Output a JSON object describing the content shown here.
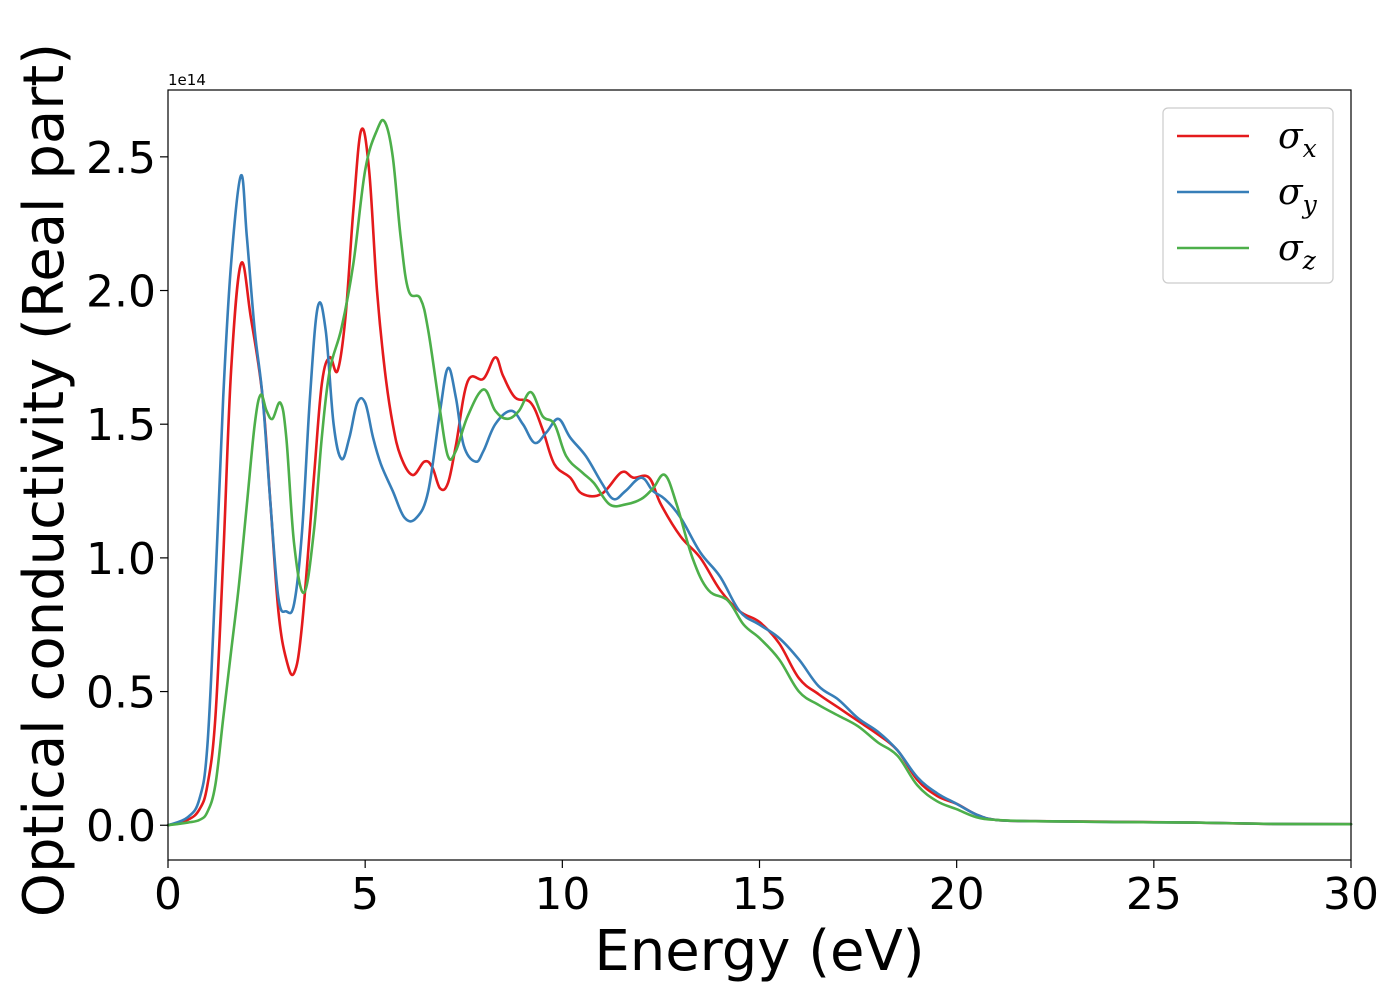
{
  "chart_data": {
    "type": "line",
    "title": "",
    "xlabel": "Energy (eV)",
    "ylabel": "Optical conductivity (Real part)",
    "y_offset_label": "1e14",
    "y_scale": 100000000000000.0,
    "xlim": [
      0,
      30
    ],
    "ylim": [
      -0.13,
      2.75
    ],
    "xticks": [
      0,
      5,
      10,
      15,
      20,
      25,
      30
    ],
    "xtick_labels": [
      "0",
      "5",
      "10",
      "15",
      "20",
      "25",
      "30"
    ],
    "yticks": [
      0.0,
      0.5,
      1.0,
      1.5,
      2.0,
      2.5
    ],
    "ytick_labels": [
      "0.0",
      "0.5",
      "1.0",
      "1.5",
      "2.0",
      "2.5"
    ],
    "grid": false,
    "legend_position": "top-right",
    "series": [
      {
        "name": "σx",
        "name_base": "σ",
        "name_sub": "x",
        "color": "#e41a1c",
        "points": [
          [
            0,
            0
          ],
          [
            0.5,
            0.02
          ],
          [
            0.8,
            0.06
          ],
          [
            1.0,
            0.15
          ],
          [
            1.2,
            0.4
          ],
          [
            1.4,
            1.0
          ],
          [
            1.6,
            1.7
          ],
          [
            1.85,
            2.1
          ],
          [
            2.1,
            1.9
          ],
          [
            2.4,
            1.6
          ],
          [
            2.6,
            1.2
          ],
          [
            2.8,
            0.8
          ],
          [
            3.0,
            0.62
          ],
          [
            3.2,
            0.57
          ],
          [
            3.4,
            0.75
          ],
          [
            3.7,
            1.3
          ],
          [
            3.9,
            1.65
          ],
          [
            4.1,
            1.75
          ],
          [
            4.3,
            1.7
          ],
          [
            4.5,
            1.9
          ],
          [
            4.7,
            2.3
          ],
          [
            4.9,
            2.6
          ],
          [
            5.1,
            2.45
          ],
          [
            5.3,
            2.0
          ],
          [
            5.5,
            1.7
          ],
          [
            5.7,
            1.5
          ],
          [
            5.9,
            1.38
          ],
          [
            6.2,
            1.31
          ],
          [
            6.5,
            1.36
          ],
          [
            6.7,
            1.34
          ],
          [
            6.9,
            1.26
          ],
          [
            7.1,
            1.28
          ],
          [
            7.3,
            1.42
          ],
          [
            7.6,
            1.66
          ],
          [
            8.0,
            1.67
          ],
          [
            8.3,
            1.75
          ],
          [
            8.5,
            1.68
          ],
          [
            8.8,
            1.6
          ],
          [
            9.2,
            1.58
          ],
          [
            9.5,
            1.48
          ],
          [
            9.8,
            1.35
          ],
          [
            10.2,
            1.3
          ],
          [
            10.5,
            1.24
          ],
          [
            11.0,
            1.24
          ],
          [
            11.5,
            1.32
          ],
          [
            11.8,
            1.3
          ],
          [
            12.2,
            1.3
          ],
          [
            12.5,
            1.2
          ],
          [
            13.0,
            1.08
          ],
          [
            13.5,
            1.0
          ],
          [
            14.0,
            0.88
          ],
          [
            14.5,
            0.8
          ],
          [
            15.0,
            0.76
          ],
          [
            15.5,
            0.68
          ],
          [
            16.0,
            0.55
          ],
          [
            16.5,
            0.49
          ],
          [
            17.0,
            0.44
          ],
          [
            17.5,
            0.39
          ],
          [
            18.0,
            0.34
          ],
          [
            18.5,
            0.28
          ],
          [
            19.0,
            0.17
          ],
          [
            19.5,
            0.11
          ],
          [
            20.0,
            0.08
          ],
          [
            20.5,
            0.04
          ],
          [
            21.0,
            0.02
          ],
          [
            22.0,
            0.015
          ],
          [
            24.0,
            0.013
          ],
          [
            26.0,
            0.01
          ],
          [
            28.0,
            0.005
          ],
          [
            30.0,
            0.004
          ]
        ]
      },
      {
        "name": "σy",
        "name_base": "σ",
        "name_sub": "y",
        "color": "#377eb8",
        "points": [
          [
            0,
            0
          ],
          [
            0.5,
            0.03
          ],
          [
            0.8,
            0.1
          ],
          [
            1.0,
            0.3
          ],
          [
            1.2,
            0.9
          ],
          [
            1.4,
            1.6
          ],
          [
            1.6,
            2.1
          ],
          [
            1.85,
            2.43
          ],
          [
            2.0,
            2.2
          ],
          [
            2.2,
            1.85
          ],
          [
            2.4,
            1.6
          ],
          [
            2.6,
            1.2
          ],
          [
            2.8,
            0.85
          ],
          [
            3.0,
            0.8
          ],
          [
            3.2,
            0.83
          ],
          [
            3.4,
            1.1
          ],
          [
            3.6,
            1.6
          ],
          [
            3.8,
            1.94
          ],
          [
            4.0,
            1.85
          ],
          [
            4.2,
            1.5
          ],
          [
            4.4,
            1.37
          ],
          [
            4.6,
            1.45
          ],
          [
            4.8,
            1.58
          ],
          [
            5.0,
            1.58
          ],
          [
            5.2,
            1.45
          ],
          [
            5.4,
            1.35
          ],
          [
            5.7,
            1.25
          ],
          [
            6.0,
            1.15
          ],
          [
            6.3,
            1.15
          ],
          [
            6.6,
            1.25
          ],
          [
            6.9,
            1.55
          ],
          [
            7.1,
            1.71
          ],
          [
            7.3,
            1.6
          ],
          [
            7.5,
            1.42
          ],
          [
            7.8,
            1.36
          ],
          [
            8.0,
            1.4
          ],
          [
            8.3,
            1.5
          ],
          [
            8.7,
            1.55
          ],
          [
            9.0,
            1.5
          ],
          [
            9.3,
            1.43
          ],
          [
            9.6,
            1.47
          ],
          [
            9.9,
            1.52
          ],
          [
            10.2,
            1.45
          ],
          [
            10.6,
            1.38
          ],
          [
            11.0,
            1.28
          ],
          [
            11.3,
            1.22
          ],
          [
            11.6,
            1.25
          ],
          [
            12.0,
            1.3
          ],
          [
            12.3,
            1.25
          ],
          [
            12.6,
            1.22
          ],
          [
            13.0,
            1.15
          ],
          [
            13.5,
            1.02
          ],
          [
            14.0,
            0.93
          ],
          [
            14.5,
            0.8
          ],
          [
            15.0,
            0.75
          ],
          [
            15.5,
            0.7
          ],
          [
            16.0,
            0.62
          ],
          [
            16.5,
            0.52
          ],
          [
            17.0,
            0.47
          ],
          [
            17.5,
            0.4
          ],
          [
            18.0,
            0.35
          ],
          [
            18.5,
            0.28
          ],
          [
            19.0,
            0.18
          ],
          [
            19.5,
            0.12
          ],
          [
            20.0,
            0.08
          ],
          [
            20.5,
            0.04
          ],
          [
            21.0,
            0.02
          ],
          [
            22.0,
            0.015
          ],
          [
            24.0,
            0.012
          ],
          [
            26.0,
            0.01
          ],
          [
            28.0,
            0.005
          ],
          [
            30.0,
            0.004
          ]
        ]
      },
      {
        "name": "σz",
        "name_base": "σ",
        "name_sub": "z",
        "color": "#4daf4a",
        "points": [
          [
            0,
            0
          ],
          [
            0.5,
            0.01
          ],
          [
            0.8,
            0.02
          ],
          [
            1.0,
            0.05
          ],
          [
            1.2,
            0.15
          ],
          [
            1.4,
            0.4
          ],
          [
            1.6,
            0.65
          ],
          [
            1.8,
            0.9
          ],
          [
            2.0,
            1.2
          ],
          [
            2.2,
            1.5
          ],
          [
            2.35,
            1.61
          ],
          [
            2.5,
            1.55
          ],
          [
            2.65,
            1.52
          ],
          [
            2.85,
            1.58
          ],
          [
            3.0,
            1.45
          ],
          [
            3.2,
            1.05
          ],
          [
            3.45,
            0.87
          ],
          [
            3.7,
            1.1
          ],
          [
            3.9,
            1.45
          ],
          [
            4.1,
            1.7
          ],
          [
            4.4,
            1.86
          ],
          [
            4.7,
            2.1
          ],
          [
            5.0,
            2.45
          ],
          [
            5.3,
            2.6
          ],
          [
            5.5,
            2.63
          ],
          [
            5.7,
            2.5
          ],
          [
            5.9,
            2.2
          ],
          [
            6.1,
            2.0
          ],
          [
            6.4,
            1.97
          ],
          [
            6.6,
            1.85
          ],
          [
            6.9,
            1.55
          ],
          [
            7.1,
            1.38
          ],
          [
            7.3,
            1.4
          ],
          [
            7.6,
            1.53
          ],
          [
            8.0,
            1.63
          ],
          [
            8.3,
            1.55
          ],
          [
            8.6,
            1.52
          ],
          [
            8.9,
            1.55
          ],
          [
            9.2,
            1.62
          ],
          [
            9.5,
            1.53
          ],
          [
            9.8,
            1.5
          ],
          [
            10.1,
            1.38
          ],
          [
            10.5,
            1.32
          ],
          [
            10.8,
            1.28
          ],
          [
            11.2,
            1.2
          ],
          [
            11.6,
            1.2
          ],
          [
            12.0,
            1.22
          ],
          [
            12.3,
            1.26
          ],
          [
            12.6,
            1.31
          ],
          [
            12.9,
            1.2
          ],
          [
            13.3,
            1.0
          ],
          [
            13.7,
            0.88
          ],
          [
            14.2,
            0.84
          ],
          [
            14.6,
            0.75
          ],
          [
            15.0,
            0.7
          ],
          [
            15.5,
            0.62
          ],
          [
            16.0,
            0.5
          ],
          [
            16.5,
            0.45
          ],
          [
            17.0,
            0.41
          ],
          [
            17.5,
            0.37
          ],
          [
            18.0,
            0.31
          ],
          [
            18.5,
            0.26
          ],
          [
            19.0,
            0.15
          ],
          [
            19.5,
            0.09
          ],
          [
            20.0,
            0.06
          ],
          [
            20.5,
            0.03
          ],
          [
            21.0,
            0.02
          ],
          [
            22.0,
            0.015
          ],
          [
            24.0,
            0.012
          ],
          [
            26.0,
            0.01
          ],
          [
            28.0,
            0.005
          ],
          [
            30.0,
            0.004
          ]
        ]
      }
    ]
  }
}
